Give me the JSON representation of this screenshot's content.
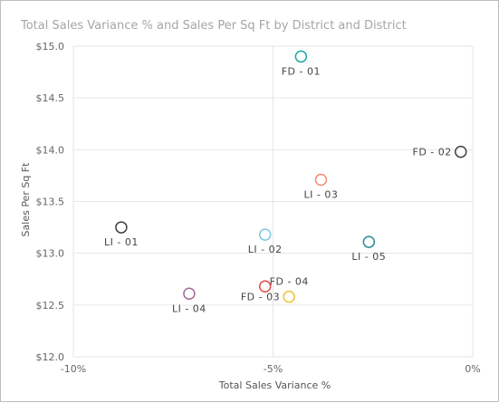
{
  "chart_data": {
    "type": "scatter",
    "title": "Total Sales Variance % and Sales Per Sq Ft by District and District",
    "xlabel": "Total Sales Variance %",
    "ylabel": "Sales Per Sq Ft",
    "xlim": [
      -10,
      0
    ],
    "ylim": [
      12.0,
      15.0
    ],
    "x_ticks": [
      {
        "value": -10,
        "label": "-10%"
      },
      {
        "value": -5,
        "label": "-5%"
      },
      {
        "value": 0,
        "label": "0%"
      }
    ],
    "y_ticks": [
      {
        "value": 12.0,
        "label": "$12.0"
      },
      {
        "value": 12.5,
        "label": "$12.5"
      },
      {
        "value": 13.0,
        "label": "$13.0"
      },
      {
        "value": 13.5,
        "label": "$13.5"
      },
      {
        "value": 14.0,
        "label": "$14.0"
      },
      {
        "value": 14.5,
        "label": "$14.5"
      },
      {
        "value": 15.0,
        "label": "$15.0"
      }
    ],
    "grid": true,
    "points": [
      {
        "label": "FD - 01",
        "x": -4.3,
        "y": 14.9,
        "color": "#1aab9f",
        "label_pos": "below"
      },
      {
        "label": "FD - 02",
        "x": -0.3,
        "y": 13.98,
        "color": "#404040",
        "label_pos": "left"
      },
      {
        "label": "LI - 03",
        "x": -3.8,
        "y": 13.71,
        "color": "#f58a6f",
        "label_pos": "below"
      },
      {
        "label": "LI - 01",
        "x": -8.8,
        "y": 13.25,
        "color": "#404040",
        "label_pos": "below"
      },
      {
        "label": "LI - 02",
        "x": -5.2,
        "y": 13.18,
        "color": "#7fc6e8",
        "label_pos": "below"
      },
      {
        "label": "LI - 05",
        "x": -2.6,
        "y": 13.11,
        "color": "#2a8b99",
        "label_pos": "below"
      },
      {
        "label": "FD - 04",
        "x": -5.2,
        "y": 12.68,
        "color": "#e8474c",
        "label_pos": "above-right"
      },
      {
        "label": "FD - 03",
        "x": -4.6,
        "y": 12.58,
        "color": "#f2c338",
        "label_pos": "left"
      },
      {
        "label": "LI - 04",
        "x": -7.1,
        "y": 12.61,
        "color": "#a66999",
        "label_pos": "below"
      }
    ]
  }
}
